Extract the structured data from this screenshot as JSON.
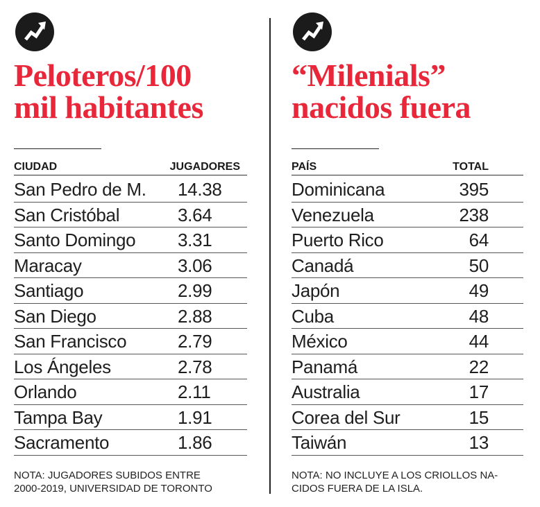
{
  "left": {
    "title_line1": "Peloteros/100",
    "title_line2": "mil habitantes",
    "col1": "CIUDAD",
    "col2": "JUGADORES",
    "rows": [
      {
        "name": "San Pedro de M.",
        "value": "14.38"
      },
      {
        "name": "San Cristóbal",
        "value": "3.64"
      },
      {
        "name": "Santo Domingo",
        "value": "3.31"
      },
      {
        "name": "Maracay",
        "value": "3.06"
      },
      {
        "name": "Santiago",
        "value": "2.99"
      },
      {
        "name": "San Diego",
        "value": "2.88"
      },
      {
        "name": "San Francisco",
        "value": "2.79"
      },
      {
        "name": "Los Ángeles",
        "value": "2.78"
      },
      {
        "name": "Orlando",
        "value": "2.11"
      },
      {
        "name": "Tampa Bay",
        "value": "1.91"
      },
      {
        "name": "Sacramento",
        "value": "1.86"
      }
    ],
    "note_line1": "NOTA: JUGADORES SUBIDOS ENTRE",
    "note_line2": "2000-2019, UNIVERSIDAD DE TORONTO"
  },
  "right": {
    "title_line1": "“Milenials”",
    "title_line2": "nacidos fuera",
    "col1": "PAÍS",
    "col2": "TOTAL",
    "rows": [
      {
        "name": "Dominicana",
        "value": "395"
      },
      {
        "name": "Venezuela",
        "value": "238"
      },
      {
        "name": "Puerto Rico",
        "value": "64"
      },
      {
        "name": "Canadá",
        "value": "50"
      },
      {
        "name": "Japón",
        "value": "49"
      },
      {
        "name": "Cuba",
        "value": "48"
      },
      {
        "name": "México",
        "value": "44"
      },
      {
        "name": "Panamá",
        "value": "22"
      },
      {
        "name": "Australia",
        "value": "17"
      },
      {
        "name": "Corea del Sur",
        "value": "15"
      },
      {
        "name": "Taiwán",
        "value": "13"
      }
    ],
    "note_line1": "NOTA: NO INCLUYE A LOS CRIOLLOS NA-",
    "note_line2": "CIDOS FUERA DE LA ISLA."
  },
  "colors": {
    "accent": "#e8283a",
    "text": "#1a1a1a",
    "logo_bg": "#1b1b1b"
  },
  "icons": {
    "logo": "trend-up-arrow-icon"
  }
}
